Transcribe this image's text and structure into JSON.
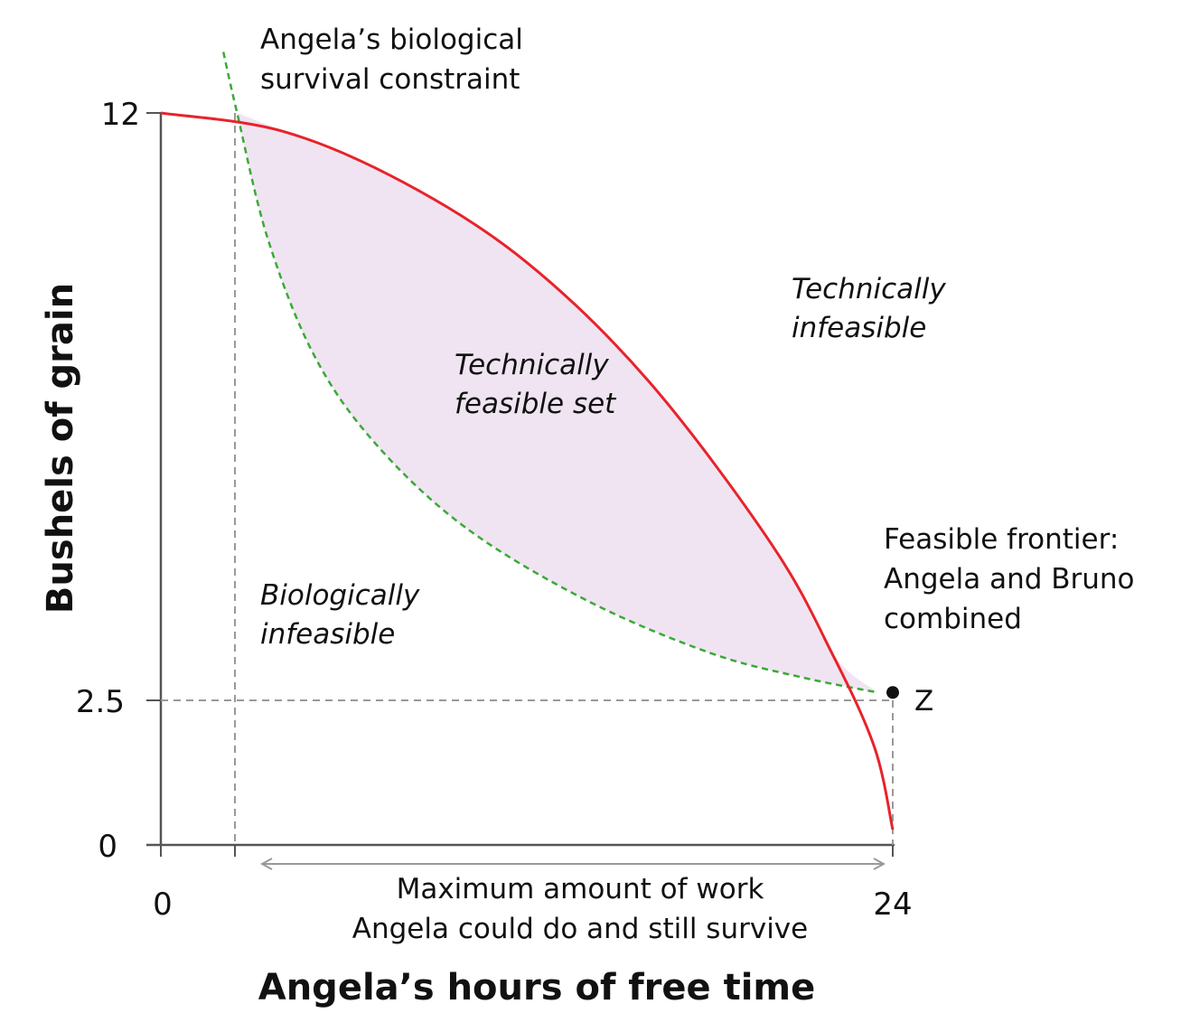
{
  "chart_data": {
    "type": "line",
    "xlabel": "Angela’s hours of free time",
    "ylabel": "Bushels of grain",
    "xlim": [
      0,
      24
    ],
    "ylim": [
      0,
      12
    ],
    "x_ticks": [
      "0",
      "24"
    ],
    "y_ticks": [
      "12",
      "2.5",
      "0"
    ],
    "grid": false,
    "series": [
      {
        "name": "Feasible frontier: Angela and Bruno combined",
        "style": "solid",
        "color": "#e8232a",
        "x": [
          0,
          4,
          8,
          12,
          16,
          20,
          22,
          23.4,
          24
        ],
        "y": [
          12,
          11.7,
          10.85,
          9.55,
          7.6,
          4.95,
          3.15,
          1.6,
          0.25
        ]
      },
      {
        "name": "Angela’s biological survival constraint",
        "style": "dashed",
        "color": "#3aaa35",
        "x": [
          2.05,
          2.5,
          3.5,
          5,
          7,
          10,
          14,
          18,
          21,
          23.5
        ],
        "y": [
          13.0,
          12.0,
          9.95,
          8.05,
          6.6,
          5.2,
          4.0,
          3.15,
          2.75,
          2.5
        ]
      }
    ],
    "points": [
      {
        "label": "Z",
        "x": 24,
        "y": 2.5
      }
    ],
    "reference_lines": [
      {
        "axis": "y",
        "value": 2.5
      },
      {
        "axis": "x",
        "value": 2.5
      },
      {
        "axis": "x",
        "value": 24
      }
    ],
    "shaded_region": {
      "label": "Technically feasible set",
      "color": "#f0e4f2"
    },
    "annotations": {
      "survival_line1": "Angela’s biological",
      "survival_line2": "survival constraint",
      "tech_infeasible_line1": "Technically",
      "tech_infeasible_line2": "infeasible",
      "feasible_set_line1": "Technically",
      "feasible_set_line2": "feasible set",
      "bio_infeasible_line1": "Biologically",
      "bio_infeasible_line2": "infeasible",
      "frontier_line1": "Feasible frontier:",
      "frontier_line2": "Angela and Bruno",
      "frontier_line3": "combined",
      "max_work_line1": "Maximum amount of work",
      "max_work_line2": "Angela could do and still survive",
      "z_label": "Z"
    }
  }
}
